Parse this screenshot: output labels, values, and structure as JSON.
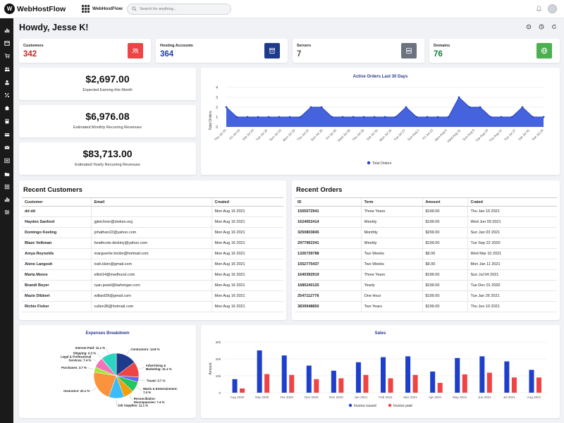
{
  "app": {
    "brand": "WebHostFlow",
    "tab_label": "WebHostFlow",
    "search_placeholder": "Search for anything..."
  },
  "header": {
    "greeting": "Howdy, Jesse K!"
  },
  "stats": [
    {
      "label": "Customers",
      "value": "342",
      "color": "#c62828",
      "icon_color": "#ef4444",
      "icon": "users-icon"
    },
    {
      "label": "Hosting Accounts",
      "value": "364",
      "color": "#1e40af",
      "icon_color": "#1e3a8a",
      "icon": "archive-icon"
    },
    {
      "label": "Servers",
      "value": "7",
      "color": "#555555",
      "icon_color": "#6b7280",
      "icon": "server-icon"
    },
    {
      "label": "Domains",
      "value": "76",
      "color": "#15803d",
      "icon_color": "#4caf50",
      "icon": "globe-icon"
    }
  ],
  "revenue": [
    {
      "value": "$2,697.00",
      "label": "Expected Earning this Month"
    },
    {
      "value": "$6,976.08",
      "label": "Estimated Monthly Recurring Revenues"
    },
    {
      "value": "$83,713.00",
      "label": "Estimated Yearly Recurring Revenues"
    }
  ],
  "orders_chart": {
    "title": "Active Orders Last 30 Days",
    "ylabel": "Total Orders",
    "legend": "Total Orders",
    "color": "#3b5bdb",
    "chart_data": {
      "type": "area",
      "x": [
        "Thu Jul 15",
        "Fri Jul 16",
        "Sat Jul 17",
        "Sun Jul 18",
        "Mon Jul 19",
        "Tue Jul 20",
        "Wed Jul 21",
        "Thu Jul 22",
        "Fri Jul 23",
        "Sat Jul 24",
        "Sun Jul 25",
        "Mon Jul 26",
        "Tue Jul 27",
        "Wed Jul 28",
        "Thu Jul 29",
        "Fri Jul 30",
        "Sat Jul 31",
        "Sun Aug 1",
        "Mon Aug 2",
        "Tue Aug 3",
        "Wed Aug 4",
        "Thu Aug 5",
        "Fri Aug 6",
        "Sat Aug 7",
        "Sun Aug 8",
        "Mon Aug 9",
        "Tue Aug 10",
        "Wed Aug 11",
        "Thu Aug 12",
        "Fri Aug 13",
        "Sat Aug 14"
      ],
      "x_ticks": [
        "Thu Jul 15",
        "Fri Jul 23",
        "Sat Jul 24",
        "Tue Jul 20",
        "Sun Jul 18",
        "Mon Jul 19",
        "Thu Jul 22",
        "Sun Jul 25",
        "Fri Jul 30",
        "Wed Jul 28",
        "Thu Jul 29",
        "Sat Jul 31",
        "Mon Jul 26",
        "Tue Jul 27",
        "Sun Aug 1",
        "Fri Jul 23",
        "Mon Aug 9",
        "Wed Aug 11",
        "Sun Aug 8",
        "Tue Aug 10",
        "Thu Aug 12",
        "Tue Jul 27",
        "Sat Jul 31",
        "Sat Jul 24"
      ],
      "values": [
        2,
        1,
        1,
        1,
        1,
        1,
        1,
        1,
        2,
        2,
        1,
        1,
        1,
        1,
        1,
        1,
        1,
        2,
        1,
        1,
        1,
        1,
        3,
        2,
        2,
        1,
        1,
        1,
        2,
        1,
        1
      ],
      "ylim": [
        0,
        4
      ]
    }
  },
  "customers": {
    "title": "Recent Customers",
    "columns": [
      "Customer",
      "Email",
      "Created"
    ],
    "rows": [
      [
        "dd dd",
        "",
        "Mon Aug 16 2021"
      ],
      [
        "Hayden Sanford",
        "jgleichner@stokes.org",
        "Mon Aug 16 2021"
      ],
      [
        "Domingo Keeling",
        "johathan22@yahoo.com",
        "Mon Aug 16 2021"
      ],
      [
        "Blaze Volkman",
        "heathcote.destiny@yahoo.com",
        "Mon Aug 16 2021"
      ],
      [
        "Amya Reynolds",
        "marguerite.hickle@hotmail.com",
        "Mon Aug 16 2021"
      ],
      [
        "Alene Langosh",
        "ivah.klein@gmail.com",
        "Mon Aug 16 2021"
      ],
      [
        "Marta Moore",
        "elliot14@medhurst.com",
        "Mon Aug 16 2021"
      ],
      [
        "Brandi Boyer",
        "ryan.jewel@bahringer.com",
        "Mon Aug 16 2021"
      ],
      [
        "Mazie Dibbert",
        "willard39@gmail.com",
        "Mon Aug 16 2021"
      ],
      [
        "Richie Fisher",
        "cullen36@hotmail.com",
        "Mon Aug 16 2021"
      ]
    ]
  },
  "orders": {
    "title": "Recent Orders",
    "columns": [
      "ID",
      "Term",
      "Amount",
      "Crated"
    ],
    "rows": [
      [
        "1555572941",
        "Three Years",
        "$199.00",
        "Thu Jan 10 2021"
      ],
      [
        "1624052414",
        "Weekly",
        "$199.00",
        "Wed Jun 09 2021"
      ],
      [
        "3250803845",
        "Monthly",
        "$299.00",
        "Sun Jan 03 2021"
      ],
      [
        "2977962341",
        "Weekly",
        "$199.00",
        "Tue Sep 22 2020"
      ],
      [
        "1326739788",
        "Two Weeks",
        "$9.00",
        "Wed Mar 10 2021"
      ],
      [
        "1552775437",
        "Two Weeks",
        "$9.00",
        "Mon Jan 11 2021"
      ],
      [
        "1640392919",
        "Three Years",
        "$199.00",
        "Sun Jul 04 2021"
      ],
      [
        "1685240125",
        "Yearly",
        "$199.00",
        "Tue Dec 01 2020"
      ],
      [
        "2547112778",
        "One Hour",
        "$199.00",
        "Tue Jan 26 2021"
      ],
      [
        "3839948850",
        "Two Years",
        "$199.00",
        "Thu Jun 10 2021"
      ]
    ]
  },
  "expenses": {
    "title": "Expenses Breakdown",
    "chart_data": {
      "type": "pie",
      "slices": [
        {
          "label": "Contractors: 14.8 %",
          "value": 14.8,
          "color": "#1e3a8a"
        },
        {
          "label": "Advertising & Marketing: 11.1 %",
          "value": 11.1,
          "color": "#ef4444"
        },
        {
          "label": "Travel: 3.7 %",
          "value": 3.7,
          "color": "#6366f1"
        },
        {
          "label": "Meals & Entertainment: 7.4 %",
          "value": 7.4,
          "color": "#22c55e"
        },
        {
          "label": "Reconciliation Discrepancies: 7.4 %",
          "value": 7.4,
          "color": "#f59e0b"
        },
        {
          "label": "Job Supplies: 11.1 %",
          "value": 11.1,
          "color": "#38bdf8"
        },
        {
          "label": "Insurance: 22.1 %",
          "value": 22.1,
          "color": "#fb923c"
        },
        {
          "label": "Purchases: 3.7 %",
          "value": 3.7,
          "color": "#a3e635"
        },
        {
          "label": "Legal & Professional Services: 7.4 %",
          "value": 7.4,
          "color": "#f472b6"
        },
        {
          "label": "Shipping: 0.3 %",
          "value": 0.3,
          "color": "#a855f7"
        },
        {
          "label": "Interest Paid: 11.1 %",
          "value": 11.1,
          "color": "#2dd4bf"
        }
      ]
    }
  },
  "sales": {
    "title": "Sales",
    "ylabel": "Amount",
    "legend": [
      "Invoice issued",
      "Invoice paid"
    ],
    "colors": [
      "#1d3fcc",
      "#ef4444"
    ],
    "chart_data": {
      "type": "bar",
      "categories": [
        "Aug 2020",
        "Sep 2020",
        "Oct 2020",
        "Nov 2020",
        "Dec 2020",
        "Jan 2021",
        "Feb 2021",
        "Mar 2021",
        "Apr 2021",
        "May 2021",
        "Jun 2021",
        "Jul 2021",
        "Aug 2021"
      ],
      "series": [
        {
          "name": "Invoice issued",
          "values": [
            8000,
            25000,
            22000,
            16000,
            13000,
            18000,
            21000,
            21500,
            12500,
            20500,
            21500,
            18500,
            13500
          ]
        },
        {
          "name": "Invoice paid",
          "values": [
            2500,
            11000,
            10500,
            8000,
            8500,
            10500,
            8500,
            10500,
            5800,
            10800,
            11800,
            9000,
            9000
          ]
        }
      ],
      "y_ticks": [
        "0",
        "10k",
        "20k",
        "30k"
      ],
      "ylim": [
        0,
        30000
      ]
    }
  }
}
